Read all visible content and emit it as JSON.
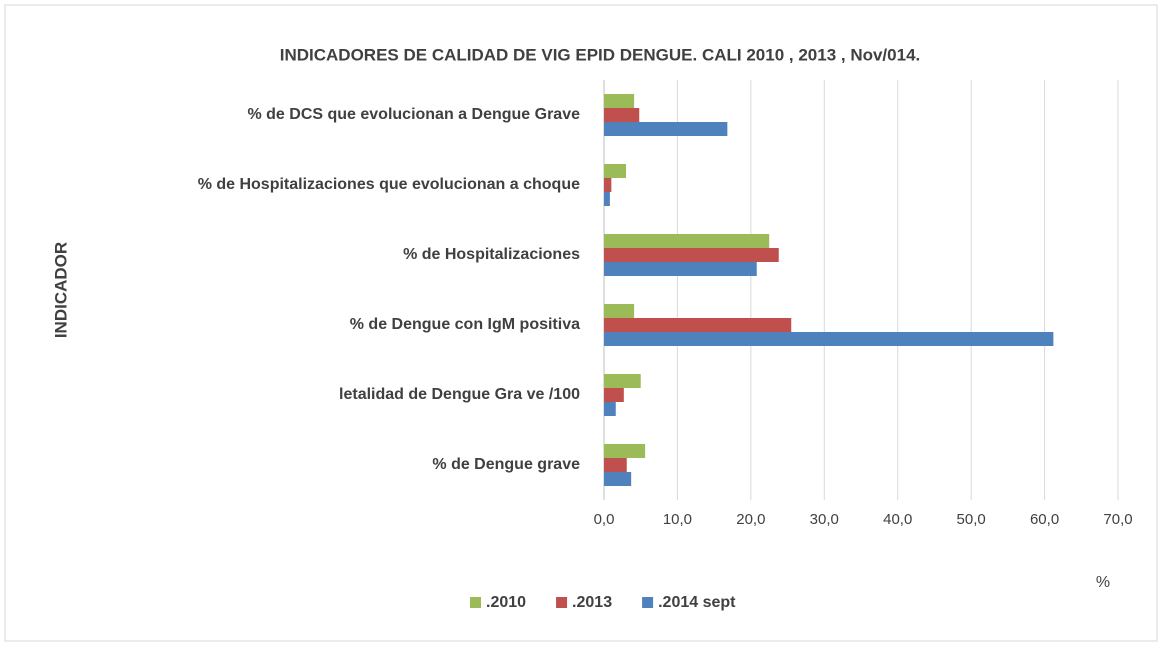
{
  "chart_data": {
    "type": "hbar",
    "title": "INDICADORES DE CALIDAD DE VIG EPID DENGUE. CALI 2010 , 2013 ,  Nov/014.",
    "y_label": "INDICADOR",
    "x_label": "%",
    "categories": [
      "% de DCS que evolucionan a Dengue Grave",
      "% de Hospitalizaciones que evolucionan a choque",
      "% de Hospitalizaciones",
      "% de Dengue con IgM positiva",
      "letalidad de Dengue Gra ve /100",
      "% de Dengue grave"
    ],
    "series": [
      {
        "name": ".2010",
        "color": "#9bbb59",
        "values": [
          4.1,
          3.0,
          22.5,
          4.1,
          5.0,
          5.6
        ]
      },
      {
        "name": ".2013",
        "color": "#c0504d",
        "values": [
          4.8,
          1.0,
          23.8,
          25.5,
          2.7,
          3.1
        ]
      },
      {
        "name": ".2014 sept",
        "color": "#4f81bd",
        "values": [
          16.8,
          0.8,
          20.8,
          61.2,
          1.6,
          3.7
        ]
      }
    ],
    "xlim": [
      0,
      70
    ],
    "xticks": [
      {
        "value": 0,
        "label": "0,0"
      },
      {
        "value": 10,
        "label": "10,0"
      },
      {
        "value": 20,
        "label": "20,0"
      },
      {
        "value": 30,
        "label": "30,0"
      },
      {
        "value": 40,
        "label": "40,0"
      },
      {
        "value": 50,
        "label": "50,0"
      },
      {
        "value": 60,
        "label": "60,0"
      },
      {
        "value": 70,
        "label": "70,0"
      }
    ],
    "grid": true,
    "legend": "bottom"
  }
}
